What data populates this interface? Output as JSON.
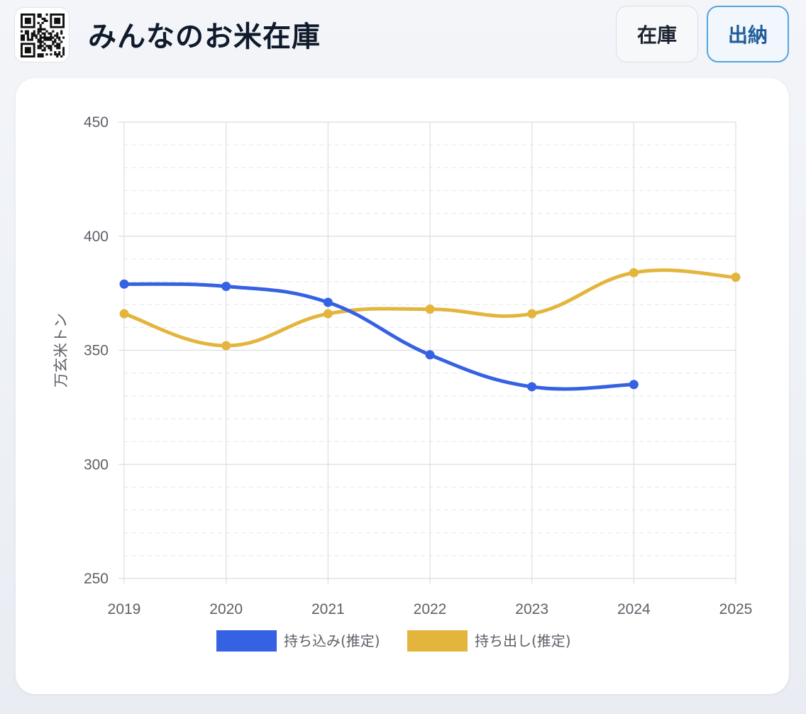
{
  "app": {
    "title": "みんなのお米在庫"
  },
  "tabs": [
    {
      "label": "在庫",
      "active": false
    },
    {
      "label": "出納",
      "active": true
    }
  ],
  "icons": {
    "logo": "qr-code-icon"
  },
  "colors": {
    "accent": "#55a3dc",
    "series_in": "#3561e3",
    "series_out": "#e3b53c"
  },
  "chart_data": {
    "type": "line",
    "title": "",
    "xlabel": "",
    "ylabel": "万玄米トン",
    "x": [
      "2019",
      "2020",
      "2021",
      "2022",
      "2023",
      "2024",
      "2025"
    ],
    "ylim": [
      250,
      450
    ],
    "yticks": [
      250,
      300,
      350,
      400,
      450
    ],
    "grid": true,
    "legend_position": "bottom",
    "series": [
      {
        "name": "持ち込み(推定)",
        "color": "#3561e3",
        "values": [
          379,
          378,
          371,
          348,
          334,
          335,
          null
        ]
      },
      {
        "name": "持ち出し(推定)",
        "color": "#e3b53c",
        "values": [
          366,
          352,
          366,
          368,
          366,
          384,
          382
        ]
      }
    ]
  }
}
